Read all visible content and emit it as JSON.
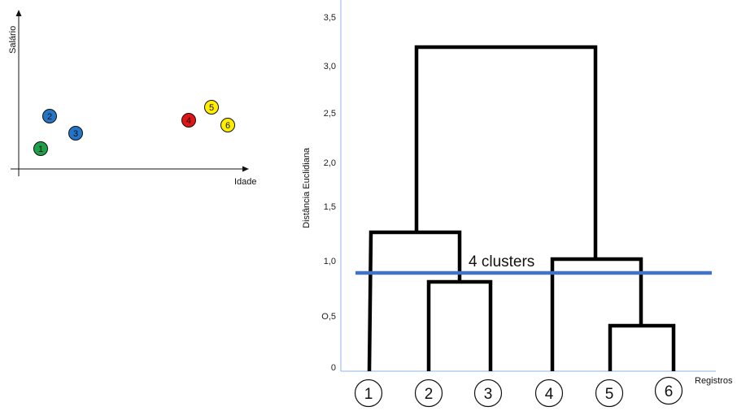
{
  "scatter": {
    "xlabel": "Idade",
    "ylabel": "Salário",
    "points": [
      {
        "label": "1",
        "color": "#1ea04a"
      },
      {
        "label": "2",
        "color": "#2475c8"
      },
      {
        "label": "3",
        "color": "#2475c8"
      },
      {
        "label": "4",
        "color": "#e01616"
      },
      {
        "label": "5",
        "color": "#ffee00"
      },
      {
        "label": "6",
        "color": "#ffee00"
      }
    ]
  },
  "dendrogram": {
    "ylabel": "Distância Euclidiana",
    "xlabel": "Registros",
    "yticks": [
      "0",
      "O,5",
      "1,0",
      "1,5",
      "2,0",
      "2,5",
      "3,0",
      "3,5"
    ],
    "leaves": [
      "1",
      "2",
      "3",
      "4",
      "5",
      "6"
    ],
    "cut_label": "4 clusters",
    "cut_color": "#4472c4",
    "merges": [
      {
        "left": "2",
        "right": "3",
        "height": 0.8
      },
      {
        "left": "5",
        "right": "6",
        "height": 0.4
      },
      {
        "left": "1",
        "right": "2-3",
        "height": 1.25
      },
      {
        "left": "4",
        "right": "5-6",
        "height": 1.0
      },
      {
        "left": "1-2-3",
        "right": "4-5-6",
        "height": 3.2
      }
    ],
    "cut_height": 0.88
  }
}
